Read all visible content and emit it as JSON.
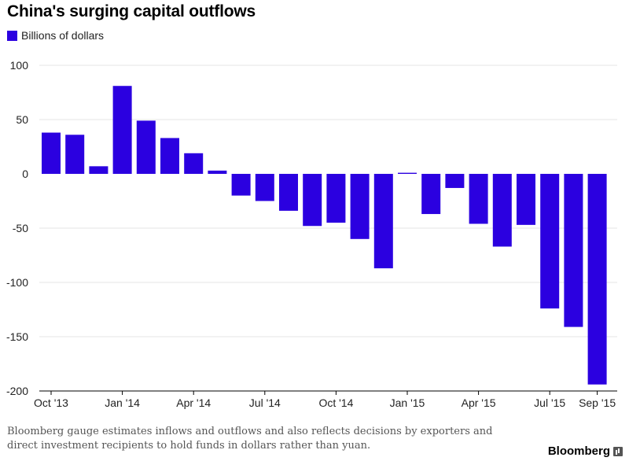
{
  "title": "China's surging capital outflows",
  "legend_label": "Billions of dollars",
  "footnote": "Bloomberg gauge estimates inflows and outflows and also reflects decisions by exporters and direct investment recipients to hold funds in dollars rather than yuan.",
  "brand": "Bloomberg",
  "colors": {
    "bar": "#2b00e0",
    "grid": "#e6e6e6",
    "axis": "#000000",
    "text": "#222222"
  },
  "chart_data": {
    "type": "bar",
    "title": "China's surging capital outflows",
    "ylabel": "Billions of dollars",
    "xlabel": "",
    "ylim": [
      -200,
      100
    ],
    "yticks": [
      100,
      50,
      0,
      -50,
      -100,
      -150,
      -200
    ],
    "grid": true,
    "categories": [
      "Oct '13",
      "Nov '13",
      "Dec '13",
      "Jan '14",
      "Feb '14",
      "Mar '14",
      "Apr '14",
      "May '14",
      "Jun '14",
      "Jul '14",
      "Aug '14",
      "Sep '14",
      "Oct '14",
      "Nov '14",
      "Dec '14",
      "Jan '15",
      "Feb '15",
      "Mar '15",
      "Apr '15",
      "May '15",
      "Jun '15",
      "Jul '15",
      "Aug '15",
      "Sep '15"
    ],
    "xtick_labels": [
      "Oct '13",
      "",
      "",
      "Jan '14",
      "",
      "",
      "Apr '14",
      "",
      "",
      "Jul '14",
      "",
      "",
      "Oct '14",
      "",
      "",
      "Jan '15",
      "",
      "",
      "Apr '15",
      "",
      "",
      "Jul '15",
      "",
      "Sep '15"
    ],
    "series": [
      {
        "name": "Billions of dollars",
        "values": [
          38,
          36,
          7,
          81,
          49,
          33,
          19,
          3,
          -20,
          -25,
          -34,
          -48,
          -45,
          -60,
          -87,
          1,
          -37,
          -13,
          -46,
          -67,
          -47,
          -124,
          -141,
          -194
        ]
      }
    ]
  }
}
